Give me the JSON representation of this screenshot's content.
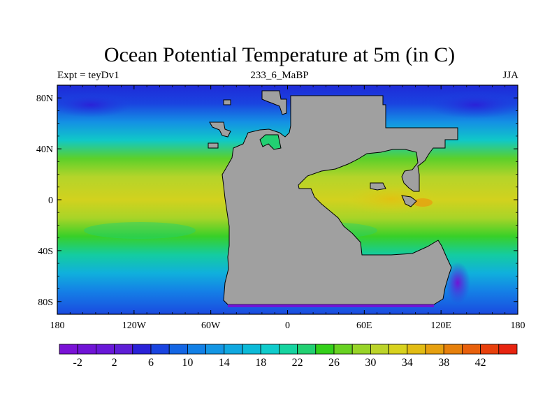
{
  "title": "Ocean Potential Temperature at 5m (in C)",
  "left_string": "Expt = teyDv1",
  "center_string": "233_6_MaBP",
  "right_string": "JJA",
  "lat_labels": [
    {
      "label": "80N",
      "lat": 80
    },
    {
      "label": "40N",
      "lat": 40
    },
    {
      "label": "0",
      "lat": 0
    },
    {
      "label": "40S",
      "lat": -40
    },
    {
      "label": "80S",
      "lat": -80
    }
  ],
  "lon_labels": [
    {
      "label": "180",
      "lon": -180
    },
    {
      "label": "120W",
      "lon": -120
    },
    {
      "label": "60W",
      "lon": -60
    },
    {
      "label": "0",
      "lon": 0
    },
    {
      "label": "60E",
      "lon": 60
    },
    {
      "label": "120E",
      "lon": 120
    },
    {
      "label": "180",
      "lon": 180
    }
  ],
  "colorbar": {
    "labels": [
      "-2",
      "2",
      "6",
      "10",
      "14",
      "18",
      "22",
      "26",
      "30",
      "34",
      "38",
      "42"
    ],
    "colors": [
      "#7a12d6",
      "#7014d6",
      "#6918d8",
      "#5e1ed6",
      "#2a22d8",
      "#1a44e0",
      "#1466e4",
      "#1280e6",
      "#1496e4",
      "#10a8e0",
      "#0cbad8",
      "#10cccc",
      "#16d4a0",
      "#22d072",
      "#34d01a",
      "#68d222",
      "#98d428",
      "#bcd42a",
      "#d8d21e",
      "#e2bc14",
      "#e6a010",
      "#e6800c",
      "#e8600c",
      "#e8400c",
      "#e82410"
    ]
  },
  "map": {
    "land_color": "#a0a0a0",
    "coast_color": "#000000"
  }
}
